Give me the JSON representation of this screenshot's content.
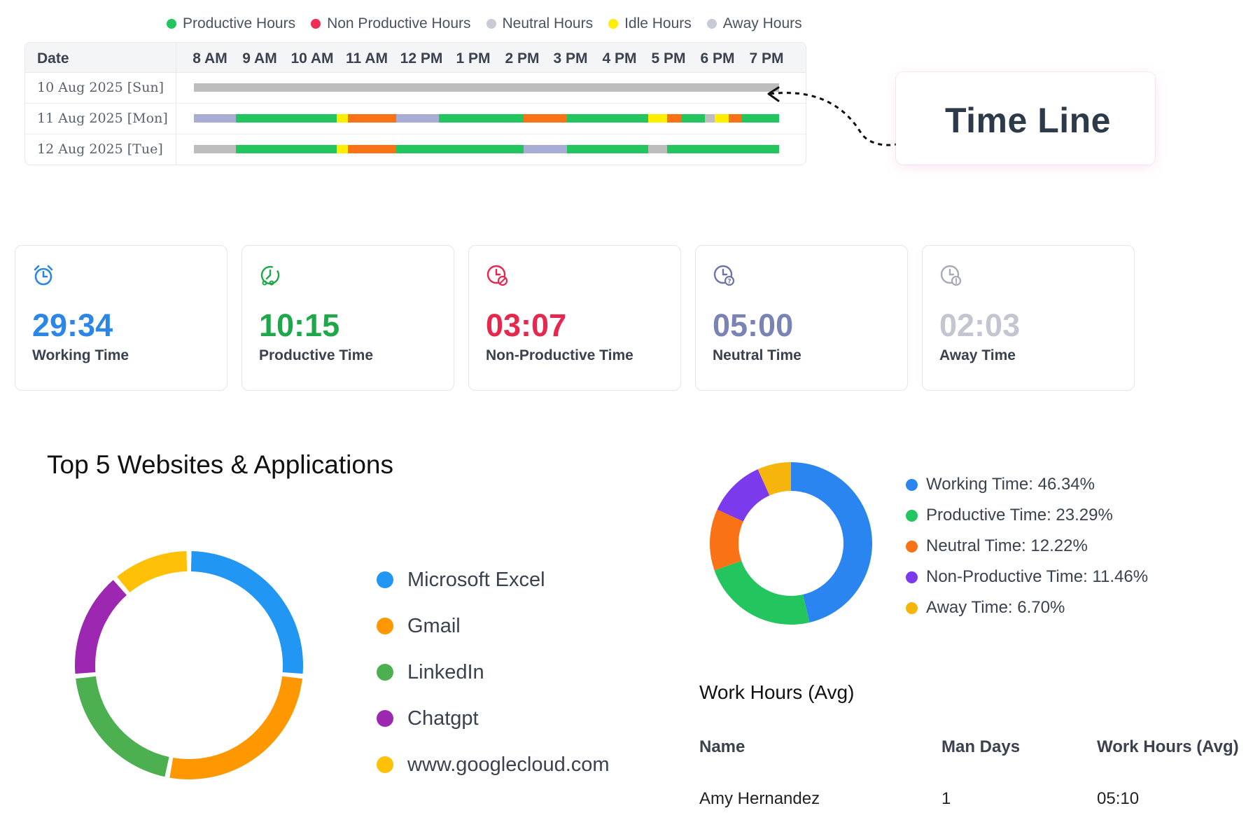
{
  "timeline": {
    "legend": [
      {
        "label": "Productive Hours",
        "color": "#22c55e"
      },
      {
        "label": "Non Productive Hours",
        "color": "#ef2d56"
      },
      {
        "label": "Neutral Hours",
        "color": "#c8cad6"
      },
      {
        "label": "Idle Hours",
        "color": "#ffee00"
      },
      {
        "label": "Away Hours",
        "color": "#c8cad6"
      }
    ],
    "date_header": "Date",
    "hours": [
      "8 AM",
      "9 AM",
      "10 AM",
      "11 AM",
      "12 PM",
      "1 PM",
      "2 PM",
      "3 PM",
      "4 PM",
      "5 PM",
      "6 PM",
      "7 PM"
    ],
    "rows": [
      {
        "date": "10 Aug 2025 [Sun]"
      },
      {
        "date": "11 Aug 2025 [Mon]"
      },
      {
        "date": "12 Aug 2025 [Tue]"
      }
    ],
    "callout": "Time Line"
  },
  "cards": [
    {
      "value": "29:34",
      "label": "Working Time",
      "color": "#2b86e8",
      "icon": "alarm-clock-icon"
    },
    {
      "value": "10:15",
      "label": "Productive Time",
      "color": "#1ea84a",
      "icon": "productive-clock-icon"
    },
    {
      "value": "03:07",
      "label": "Non-Productive Time",
      "color": "#e6284f",
      "icon": "non-productive-clock-icon"
    },
    {
      "value": "05:00",
      "label": "Neutral Time",
      "color": "#7b83b5",
      "icon": "neutral-clock-icon"
    },
    {
      "value": "02:03",
      "label": "Away Time",
      "color": "#c3c6d0",
      "icon": "away-clock-icon"
    }
  ],
  "top5": {
    "title": "Top 5 Websites & Applications",
    "items": [
      {
        "label": "Microsoft Excel",
        "color": "#2196f3"
      },
      {
        "label": "Gmail",
        "color": "#ff9800"
      },
      {
        "label": "LinkedIn",
        "color": "#4caf50"
      },
      {
        "label": "Chatgpt",
        "color": "#9c27b0"
      },
      {
        "label": "www.googlecloud.com",
        "color": "#ffc107"
      }
    ]
  },
  "time_split": {
    "items": [
      {
        "label": "Working Time: 46.34%",
        "color": "#2a85f0"
      },
      {
        "label": "Productive Time: 23.29%",
        "color": "#22c55e"
      },
      {
        "label": "Neutral Time: 12.22%",
        "color": "#f97316"
      },
      {
        "label": "Non-Productive Time: 11.46%",
        "color": "#7c3aed"
      },
      {
        "label": "Away Time: 6.70%",
        "color": "#f5b50c"
      }
    ]
  },
  "work_hours": {
    "title": "Work Hours (Avg)",
    "columns": [
      "Name",
      "Man Days",
      "Work Hours (Avg)"
    ],
    "rows": [
      {
        "name": "Amy Hernandez",
        "man_days": "1",
        "avg": "05:10"
      }
    ]
  },
  "chart_data": [
    {
      "type": "pie",
      "title": "Top 5 Websites & Applications",
      "categories": [
        "Microsoft Excel",
        "Gmail",
        "LinkedIn",
        "Chatgpt",
        "www.googlecloud.com"
      ],
      "values": [
        26,
        26,
        20,
        15,
        11
      ],
      "colors": [
        "#2196f3",
        "#ff9800",
        "#4caf50",
        "#9c27b0",
        "#ffc107"
      ],
      "legend": "right"
    },
    {
      "type": "pie",
      "categories": [
        "Working Time",
        "Productive Time",
        "Neutral Time",
        "Non-Productive Time",
        "Away Time"
      ],
      "values": [
        46.34,
        23.29,
        12.22,
        11.46,
        6.7
      ],
      "colors": [
        "#2a85f0",
        "#22c55e",
        "#f97316",
        "#7c3aed",
        "#f5b50c"
      ],
      "legend": "right"
    }
  ]
}
